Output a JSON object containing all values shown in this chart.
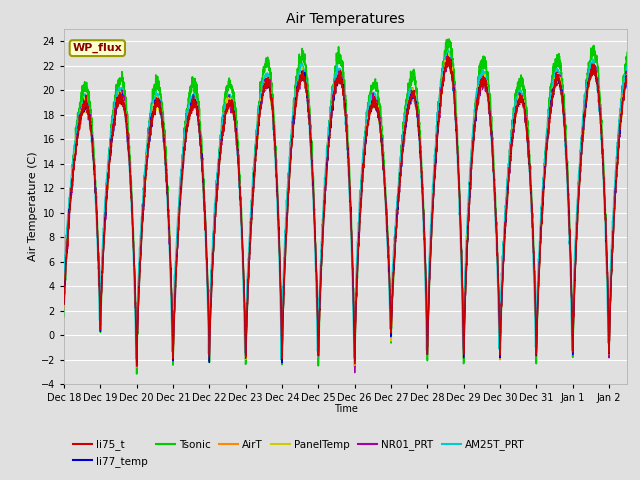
{
  "title": "Air Temperatures",
  "ylabel": "Air Temperature (C)",
  "xlabel": "Time",
  "ylim": [
    -4,
    25
  ],
  "yticks": [
    -4,
    -2,
    0,
    2,
    4,
    6,
    8,
    10,
    12,
    14,
    16,
    18,
    20,
    22,
    24
  ],
  "xtick_labels": [
    "Dec 18",
    "Dec 19",
    "Dec 20",
    "Dec 21",
    "Dec 22",
    "Dec 23",
    "Dec 24",
    "Dec 25",
    "Dec 26",
    "Dec 27",
    "Dec 28",
    "Dec 29",
    "Dec 30",
    "Dec 31",
    "Jan 1",
    "Jan 2"
  ],
  "background_color": "#e0e0e0",
  "plot_bg_color": "#e0e0e0",
  "grid_color": "white",
  "series": {
    "li75_t": {
      "color": "#cc0000",
      "lw": 1.0
    },
    "li77_temp": {
      "color": "#0000cc",
      "lw": 1.0
    },
    "Tsonic": {
      "color": "#00cc00",
      "lw": 1.2
    },
    "AirT": {
      "color": "#ff8800",
      "lw": 1.0
    },
    "PanelTemp": {
      "color": "#cccc00",
      "lw": 1.0
    },
    "NR01_PRT": {
      "color": "#aa00aa",
      "lw": 1.0
    },
    "AM25T_PRT": {
      "color": "#00cccc",
      "lw": 1.2
    }
  },
  "legend_box": {
    "text": "WP_flux",
    "facecolor": "#ffffcc",
    "edgecolor": "#999900",
    "textcolor": "#880000"
  }
}
